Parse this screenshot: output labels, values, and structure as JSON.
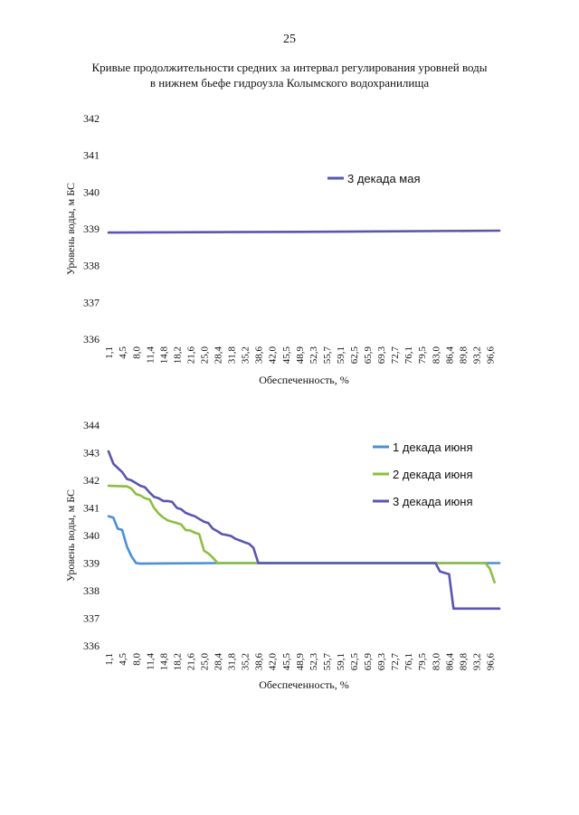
{
  "page": {
    "number": "25",
    "title_line1": "Кривые продолжительности средних за интервал регулирования уровней воды",
    "title_line2": "в нижнем бьефе гидроузла Колымского водохранилища"
  },
  "colors": {
    "series_1_june": "#4a8fd8",
    "series_2_june": "#8cbf3f",
    "series_3_june": "#5856b0",
    "series_3_may": "#5856b0"
  },
  "chart_data": [
    {
      "type": "line",
      "title": "",
      "xlabel": "Обеспеченность, %",
      "ylabel": "Уровень воды, м БС",
      "ylim": [
        336,
        342
      ],
      "yticks": [
        "336",
        "337",
        "338",
        "339",
        "340",
        "341",
        "342"
      ],
      "xticks": [
        "1,1",
        "4,5",
        "8,0",
        "11,4",
        "14,8",
        "18,2",
        "21,6",
        "25,0",
        "28,4",
        "31,8",
        "35,2",
        "38,6",
        "42,0",
        "45,5",
        "48,9",
        "52,3",
        "55,7",
        "59,1",
        "62,5",
        "65,9",
        "69,3",
        "72,7",
        "76,1",
        "79,5",
        "83,0",
        "86,4",
        "89,8",
        "93,2",
        "96,6"
      ],
      "legend_position": "top-right",
      "series": [
        {
          "name": "3 декада мая",
          "color_key": "series_3_may",
          "points": [
            [
              1.1,
              338.9
            ],
            [
              50.0,
              338.92
            ],
            [
              99.0,
              338.95
            ]
          ]
        }
      ]
    },
    {
      "type": "line",
      "title": "",
      "xlabel": "Обеспеченность, %",
      "ylabel": "Уровень воды, м БС",
      "ylim": [
        336,
        344
      ],
      "yticks": [
        "336",
        "337",
        "338",
        "339",
        "340",
        "341",
        "342",
        "343",
        "344"
      ],
      "xticks": [
        "1,1",
        "4,5",
        "8,0",
        "11,4",
        "14,8",
        "18,2",
        "21,6",
        "25,0",
        "28,4",
        "31,8",
        "35,2",
        "38,6",
        "42,0",
        "45,5",
        "48,9",
        "52,3",
        "55,7",
        "59,1",
        "62,5",
        "65,9",
        "69,3",
        "72,7",
        "76,1",
        "79,5",
        "83,0",
        "86,4",
        "89,8",
        "93,2",
        "96,6"
      ],
      "legend_position": "top-right",
      "series": [
        {
          "name": "1 декада июня",
          "color_key": "series_1_june",
          "points": [
            [
              1.1,
              340.7
            ],
            [
              2.3,
              340.65
            ],
            [
              3.4,
              340.25
            ],
            [
              4.5,
              340.2
            ],
            [
              5.7,
              339.6
            ],
            [
              6.8,
              339.25
            ],
            [
              8.0,
              339.0
            ],
            [
              9.0,
              338.98
            ],
            [
              28.4,
              339.0
            ],
            [
              99.0,
              339.0
            ]
          ]
        },
        {
          "name": "2 декада июня",
          "color_key": "series_2_june",
          "points": [
            [
              1.1,
              341.8
            ],
            [
              5.7,
              341.78
            ],
            [
              6.8,
              341.7
            ],
            [
              8.0,
              341.5
            ],
            [
              9.1,
              341.45
            ],
            [
              10.2,
              341.35
            ],
            [
              11.4,
              341.3
            ],
            [
              12.5,
              341.0
            ],
            [
              13.6,
              340.8
            ],
            [
              14.8,
              340.65
            ],
            [
              15.9,
              340.55
            ],
            [
              17.0,
              340.5
            ],
            [
              18.2,
              340.45
            ],
            [
              19.3,
              340.4
            ],
            [
              20.4,
              340.2
            ],
            [
              21.6,
              340.18
            ],
            [
              22.7,
              340.1
            ],
            [
              23.8,
              340.05
            ],
            [
              25.0,
              339.45
            ],
            [
              26.1,
              339.35
            ],
            [
              27.2,
              339.2
            ],
            [
              28.4,
              339.0
            ],
            [
              30.0,
              339.0
            ],
            [
              95.5,
              339.0
            ],
            [
              96.6,
              338.8
            ],
            [
              97.8,
              338.3
            ]
          ]
        },
        {
          "name": "3 декада июня",
          "color_key": "series_3_june",
          "points": [
            [
              1.1,
              343.05
            ],
            [
              2.3,
              342.6
            ],
            [
              3.4,
              342.45
            ],
            [
              4.5,
              342.3
            ],
            [
              5.7,
              342.05
            ],
            [
              6.8,
              342.0
            ],
            [
              8.0,
              341.9
            ],
            [
              9.1,
              341.8
            ],
            [
              10.2,
              341.75
            ],
            [
              11.4,
              341.55
            ],
            [
              12.5,
              341.4
            ],
            [
              13.6,
              341.35
            ],
            [
              14.8,
              341.25
            ],
            [
              15.9,
              341.25
            ],
            [
              17.0,
              341.22
            ],
            [
              18.2,
              341.0
            ],
            [
              19.3,
              340.95
            ],
            [
              20.4,
              340.82
            ],
            [
              21.6,
              340.75
            ],
            [
              22.7,
              340.7
            ],
            [
              23.8,
              340.6
            ],
            [
              25.0,
              340.5
            ],
            [
              26.1,
              340.45
            ],
            [
              27.2,
              340.25
            ],
            [
              28.4,
              340.15
            ],
            [
              29.5,
              340.05
            ],
            [
              30.6,
              340.02
            ],
            [
              31.8,
              339.98
            ],
            [
              32.9,
              339.88
            ],
            [
              34.0,
              339.82
            ],
            [
              35.2,
              339.75
            ],
            [
              36.3,
              339.7
            ],
            [
              37.4,
              339.55
            ],
            [
              38.6,
              339.0
            ],
            [
              83.0,
              339.0
            ],
            [
              84.1,
              338.7
            ],
            [
              85.2,
              338.65
            ],
            [
              86.4,
              338.6
            ],
            [
              87.5,
              337.35
            ],
            [
              99.0,
              337.35
            ]
          ]
        }
      ]
    }
  ]
}
